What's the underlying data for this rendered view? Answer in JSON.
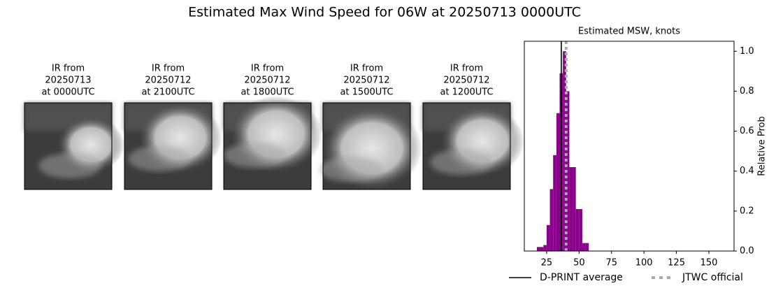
{
  "title": "Estimated Max Wind Speed for 06W at 20250713 0000UTC",
  "panels": [
    {
      "caption": [
        "IR from",
        "20250713",
        "at 0000UTC"
      ]
    },
    {
      "caption": [
        "IR from",
        "20250712",
        "at 2100UTC"
      ]
    },
    {
      "caption": [
        "IR from",
        "20250712",
        "at 1800UTC"
      ]
    },
    {
      "caption": [
        "IR from",
        "20250712",
        "at 1500UTC"
      ]
    },
    {
      "caption": [
        "IR from",
        "20250712",
        "at 1200UTC"
      ]
    }
  ],
  "chart_data": {
    "type": "histogram",
    "title": "Estimated MSW, knots",
    "ylabel": "Relative Prob",
    "bins": [
      17.5,
      20,
      22.5,
      25,
      27.5,
      30,
      32.5,
      35,
      37.5,
      40,
      42.5,
      45,
      47.5,
      50,
      52.5,
      55,
      57.5
    ],
    "values": [
      0.02,
      0.02,
      0.03,
      0.13,
      0.31,
      0.48,
      0.69,
      0.89,
      1.0,
      0.8,
      0.42,
      0.42,
      0.21,
      0.21,
      0.04,
      0.04
    ],
    "color": "#8b008b",
    "xlim": [
      7.8,
      169.4
    ],
    "xticks": [
      25,
      50,
      75,
      100,
      125,
      150
    ],
    "ylim": [
      0,
      1.05
    ],
    "yticks": [
      {
        "value": 0,
        "label": "0.0"
      },
      {
        "value": 0.2,
        "label": "0.2"
      },
      {
        "value": 0.4,
        "label": "0.4"
      },
      {
        "value": 0.6,
        "label": "0.6"
      },
      {
        "value": 0.8,
        "label": "0.8"
      },
      {
        "value": 1,
        "label": "1.0"
      }
    ],
    "lines": [
      {
        "name": "D-PRINT average",
        "value": 36.3,
        "color": "#000000",
        "style": "solid"
      },
      {
        "name": "JTWC official",
        "value": 40,
        "color": "#aaaaaa",
        "style": "dotted"
      }
    ]
  }
}
